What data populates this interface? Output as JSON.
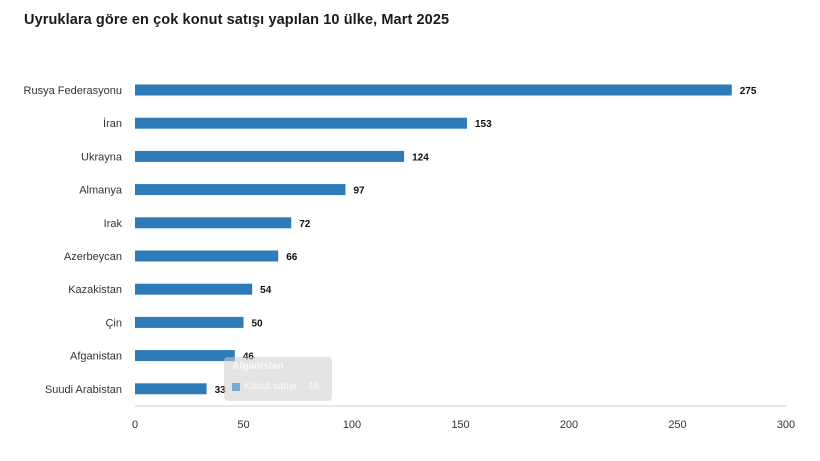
{
  "header": {
    "title": "Uyruklara göre en çok konut satışı yapılan 10 ülke, Mart 2025"
  },
  "tooltip": {
    "category": "Afganistan",
    "series_label": "Konut satışı",
    "value": "46"
  },
  "colors": {
    "bar": "#2e7bba",
    "axis": "#cfcfcf"
  },
  "chart_data": {
    "type": "bar",
    "orientation": "horizontal",
    "title": "Uyruklara göre en çok konut satışı yapılan 10 ülke, Mart 2025",
    "xlabel": "",
    "ylabel": "",
    "categories": [
      "Rusya Federasyonu",
      "İran",
      "Ukrayna",
      "Almanya",
      "Irak",
      "Azerbeycan",
      "Kazakistan",
      "Çin",
      "Afganistan",
      "Suudi Arabistan"
    ],
    "values": [
      275,
      153,
      124,
      97,
      72,
      66,
      54,
      50,
      46,
      33
    ],
    "xlim": [
      0,
      300
    ],
    "xticks": [
      0,
      50,
      100,
      150,
      200,
      250,
      300
    ],
    "grid": false,
    "legend": "none"
  }
}
